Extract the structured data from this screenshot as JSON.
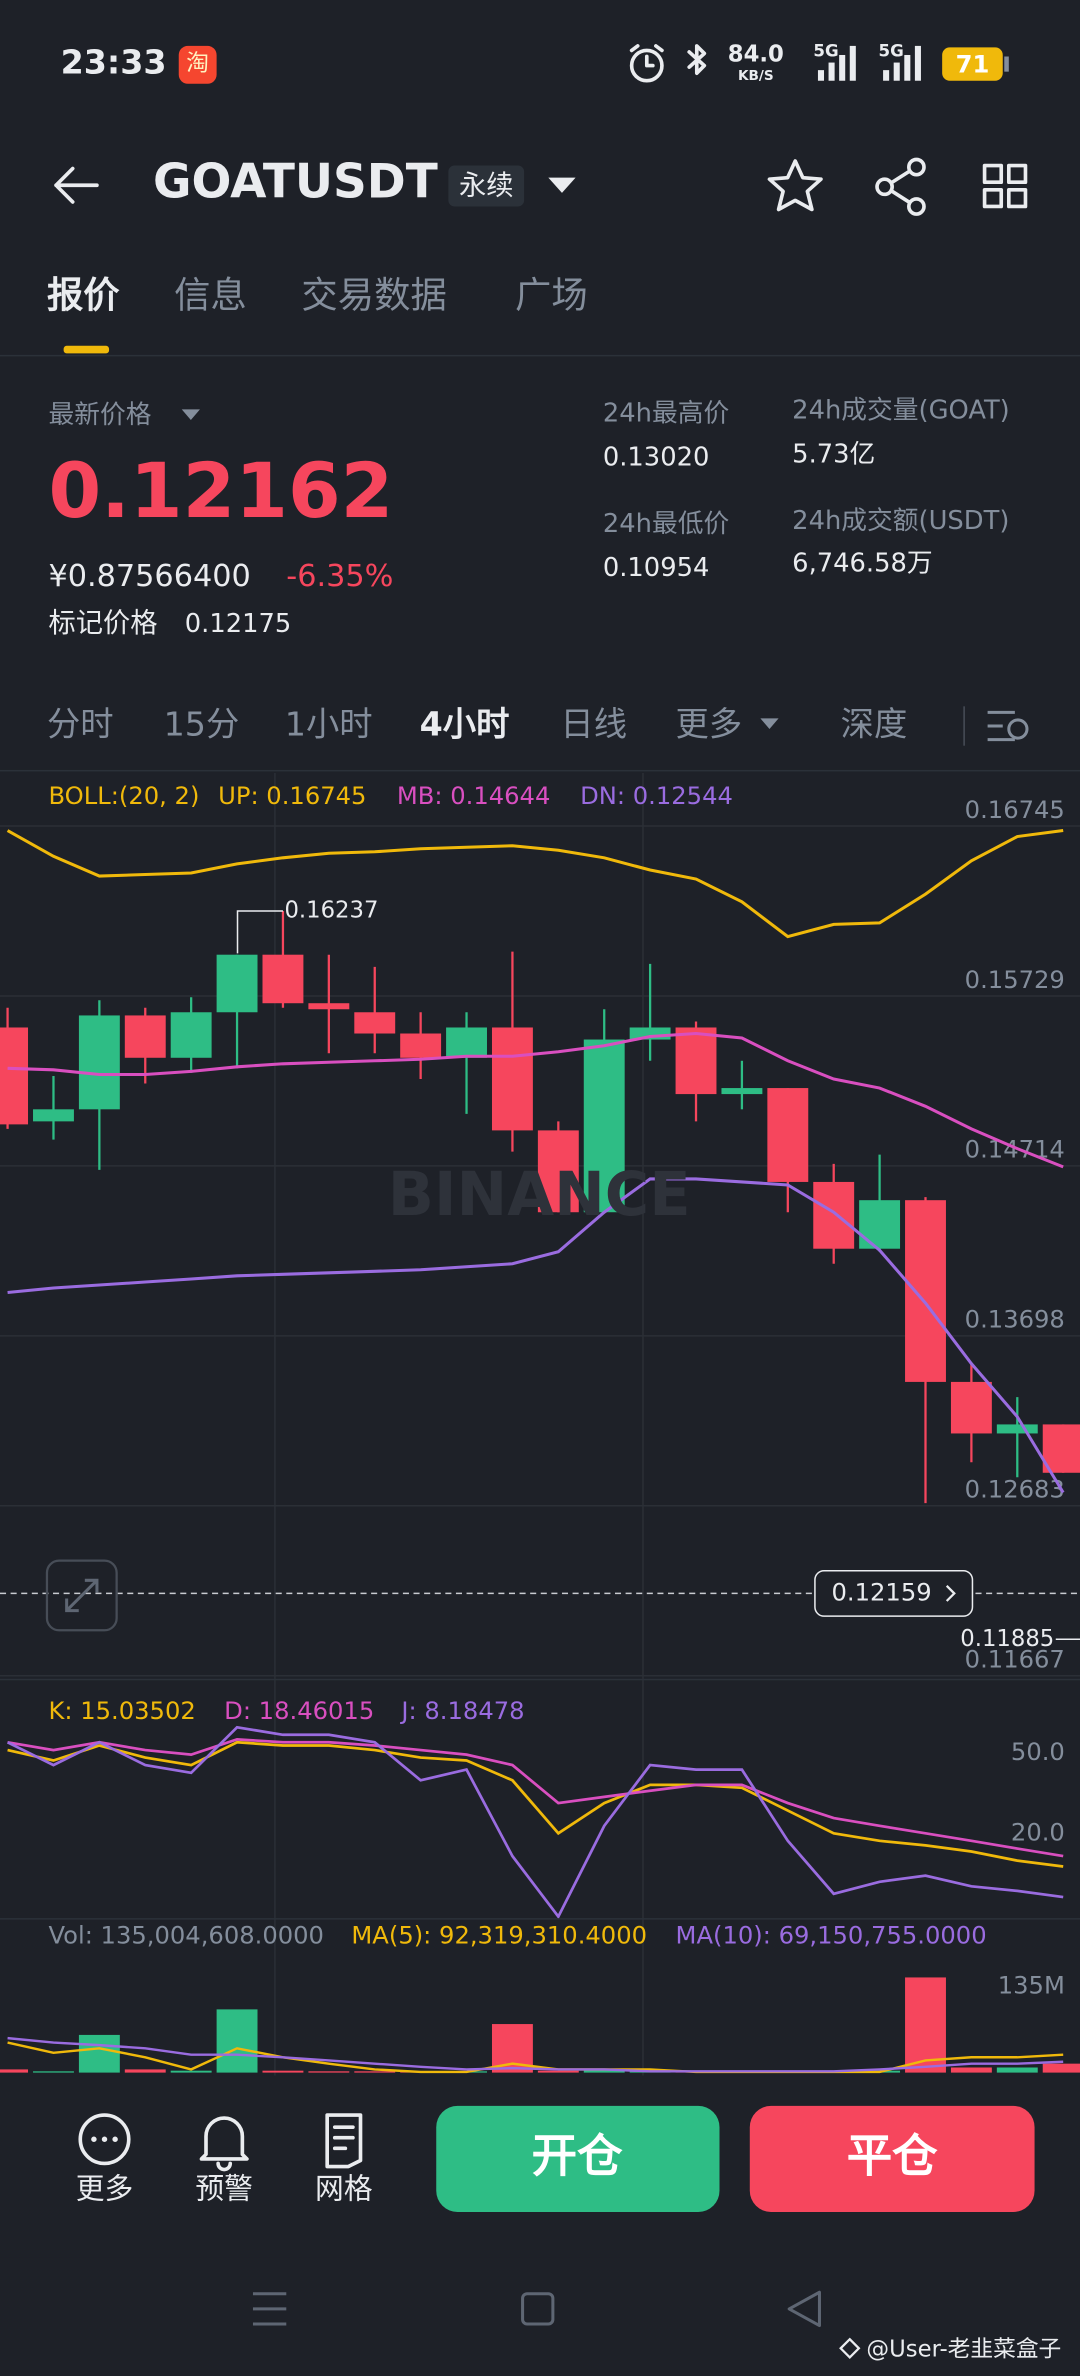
{
  "status_bar": {
    "time": "23:33",
    "app_icon": "淘",
    "net_speed": "84.0",
    "net_unit": "KB/S",
    "signal_1": "5G",
    "signal_2": "5G",
    "battery": "71"
  },
  "header": {
    "symbol": "GOATUSDT",
    "tag": "永续"
  },
  "tabs": [
    "报价",
    "信息",
    "交易数据",
    "广场"
  ],
  "price": {
    "label": "最新价格",
    "last": "0.12162",
    "cny": "¥0.87566400",
    "change": "-6.35%",
    "mark_label": "标记价格",
    "mark": "0.12175"
  },
  "stats": [
    {
      "label": "24h最高价",
      "value": "0.13020"
    },
    {
      "label": "24h成交量(GOAT)",
      "value": "5.73亿"
    },
    {
      "label": "24h最低价",
      "value": "0.10954"
    },
    {
      "label": "24h成交额(USDT)",
      "value": "6,746.58万"
    }
  ],
  "intervals": [
    "分时",
    "15分",
    "1小时",
    "4小时",
    "日线",
    "更多",
    "深度"
  ],
  "chart_data": [
    {
      "type": "candlestick",
      "indicator": "BOLL:(20, 2)",
      "watermark": "BINANCE",
      "open": [
        0.15541,
        0.1498,
        0.15052,
        0.15613,
        0.1536,
        0.15632,
        0.15976,
        0.15686,
        0.15632,
        0.15505,
        0.1536,
        0.15541,
        0.14926,
        0.14437,
        0.15469,
        0.15541,
        0.15143,
        0.15179,
        0.14618,
        0.14219,
        0.14509,
        0.13423,
        0.13115,
        0.13169
      ],
      "high": [
        0.15659,
        0.15251,
        0.15704,
        0.15659,
        0.15722,
        0.15976,
        0.16237,
        0.15976,
        0.15903,
        0.15632,
        0.15632,
        0.15994,
        0.1498,
        0.1565,
        0.15921,
        0.15577,
        0.15342,
        0.15179,
        0.14726,
        0.14781,
        0.14527,
        0.13532,
        0.13332,
        0.13169
      ],
      "low": [
        0.14935,
        0.14871,
        0.1469,
        0.15206,
        0.1527,
        0.15297,
        0.15659,
        0.15387,
        0.15387,
        0.15233,
        0.15025,
        0.14799,
        0.14437,
        0.14437,
        0.15342,
        0.1498,
        0.15052,
        0.14437,
        0.14129,
        0.14201,
        0.12699,
        0.12943,
        0.12853,
        0.1288
      ],
      "close": [
        0.14962,
        0.15052,
        0.15613,
        0.1536,
        0.15632,
        0.15976,
        0.15686,
        0.1565,
        0.15505,
        0.1536,
        0.15541,
        0.14926,
        0.14437,
        0.15469,
        0.15541,
        0.15143,
        0.15179,
        0.14618,
        0.14219,
        0.14509,
        0.13423,
        0.13115,
        0.13169,
        0.1288
      ],
      "up_color": "#2ebd85",
      "down_color": "#f6465d",
      "series": [
        {
          "label": "UP: 0.16745",
          "color": "#f0b90b",
          "values": [
            0.16718,
            0.16564,
            0.16446,
            0.16455,
            0.16464,
            0.16519,
            0.16555,
            0.16582,
            0.16591,
            0.16609,
            0.16618,
            0.16627,
            0.166,
            0.16555,
            0.16482,
            0.16428,
            0.16292,
            0.16084,
            0.16157,
            0.16166,
            0.16338,
            0.16537,
            0.16682,
            0.16718
          ]
        },
        {
          "label": "MB: 0.14644",
          "color": "#d94fc0",
          "values": [
            0.15297,
            0.15288,
            0.1526,
            0.1526,
            0.15279,
            0.15306,
            0.15324,
            0.15333,
            0.15342,
            0.15351,
            0.15369,
            0.15369,
            0.15396,
            0.15432,
            0.15487,
            0.15505,
            0.15478,
            0.15342,
            0.15233,
            0.15179,
            0.1507,
            0.14935,
            0.14817,
            0.14708
          ]
        },
        {
          "label": "DN: 0.12544",
          "color": "#9a6ce0",
          "values": [
            0.13957,
            0.13984,
            0.14002,
            0.1402,
            0.14038,
            0.14057,
            0.14066,
            0.14075,
            0.14084,
            0.14093,
            0.14111,
            0.14129,
            0.14201,
            0.14437,
            0.14636,
            0.14636,
            0.14618,
            0.146,
            0.14437,
            0.1421,
            0.13894,
            0.13532,
            0.13215,
            0.12762
          ]
        }
      ],
      "ylim": [
        0.11649,
        0.17062
      ],
      "yticks": [
        0.16745,
        0.15729,
        0.14714,
        0.13698,
        0.12683,
        0.11667
      ],
      "grid": true,
      "high_marker": 0.16237,
      "low_marker": 0.11885,
      "last_price": 0.12159
    },
    {
      "type": "line",
      "series": [
        {
          "label": "K: 15.03502",
          "color": "#f0b90b",
          "values": [
            51.1,
            47.2,
            52.8,
            48.3,
            45.5,
            54.0,
            52.8,
            52.8,
            51.1,
            48.3,
            47.2,
            39.8,
            20.0,
            31.3,
            38.1,
            38.1,
            37.0,
            28.5,
            20.0,
            17.2,
            15.5,
            13.2,
            9.8,
            7.6
          ]
        },
        {
          "label": "D: 18.46015",
          "color": "#d94fc0",
          "values": [
            54.0,
            51.1,
            54.0,
            51.1,
            49.4,
            55.1,
            54.0,
            54.0,
            52.8,
            51.1,
            49.4,
            45.5,
            31.3,
            33.6,
            35.9,
            38.1,
            38.1,
            31.3,
            25.7,
            22.8,
            20.0,
            17.2,
            14.3,
            11.5
          ]
        },
        {
          "label": "J: 8.18478",
          "color": "#9a6ce0",
          "values": [
            54.0,
            45.5,
            54.0,
            45.5,
            42.6,
            59.6,
            56.8,
            56.8,
            54.0,
            39.8,
            43.8,
            11.5,
            -11.1,
            22.8,
            45.5,
            43.8,
            43.8,
            17.2,
            -2.6,
            1.9,
            4.2,
            0.2,
            -1.5,
            -3.8
          ]
        }
      ],
      "ylim": [
        -11.1,
        73.2
      ],
      "yticks": [
        {
          "value": 50,
          "label": "50.0"
        },
        {
          "value": 20,
          "label": "20.0"
        }
      ]
    },
    {
      "type": "bar",
      "title": "Vol: 135,004,608.0000",
      "values": [
        5000000,
        2000000,
        59000000,
        5000000,
        3000000,
        99000000,
        3000000,
        2000000,
        2000000,
        2000000,
        2000000,
        76000000,
        3000000,
        4000000,
        3000000,
        2000000,
        2000000,
        2000000,
        3000000,
        3000000,
        149000000,
        8000000,
        8000000,
        14000000
      ],
      "series": [
        {
          "label": "MA(5): 92,319,310.4000",
          "color": "#f0b90b",
          "values": [
            47000000,
            31000000,
            38000000,
            24000000,
            5000000,
            38000000,
            24000000,
            14000000,
            5000000,
            1000000,
            1000000,
            14000000,
            5000000,
            5000000,
            5000000,
            1000000,
            1000000,
            1000000,
            1000000,
            1000000,
            19000000,
            24000000,
            24000000,
            28000000
          ]
        },
        {
          "label": "MA(10): 69,150,755.0000",
          "color": "#9a6ce0",
          "values": [
            54000000,
            47000000,
            43000000,
            38000000,
            28000000,
            28000000,
            24000000,
            19000000,
            14000000,
            9000000,
            5000000,
            7000000,
            5000000,
            5000000,
            2000000,
            2000000,
            2000000,
            2000000,
            2000000,
            5000000,
            9000000,
            14000000,
            14000000,
            17000000
          ]
        }
      ],
      "ylim": [
        0,
        185000000
      ],
      "yticks": [
        {
          "value": 135000000,
          "label": "135M"
        }
      ]
    }
  ],
  "actions": {
    "more": "更多",
    "alert": "预警",
    "grid": "网格",
    "open": "开仓",
    "close": "平仓"
  },
  "watermark": "@User-老韭菜盒子"
}
